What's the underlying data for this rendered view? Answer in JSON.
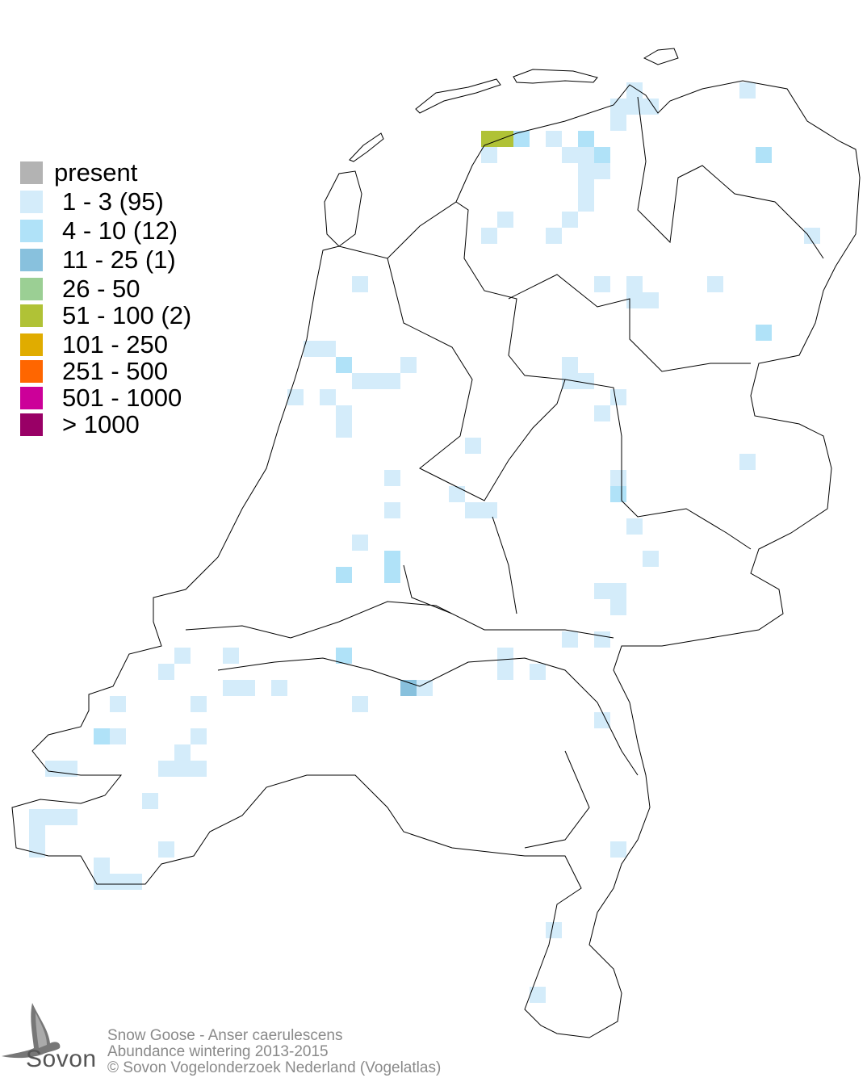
{
  "legend": {
    "items": [
      {
        "label": "present",
        "color": "#b3b3b3"
      },
      {
        "label": "1 - 3 (95)",
        "color": "#d4ecfa"
      },
      {
        "label": "4 - 10 (12)",
        "color": "#b0e2f8"
      },
      {
        "label": "11 - 25 (1)",
        "color": "#88c1dd"
      },
      {
        "label": "26 - 50",
        "color": "#9bcf94"
      },
      {
        "label": "51 - 100 (2)",
        "color": "#b0c236"
      },
      {
        "label": "101 - 250",
        "color": "#e0ac00"
      },
      {
        "label": "251 - 500",
        "color": "#ff6600"
      },
      {
        "label": "501 - 1000",
        "color": "#cc0099"
      },
      {
        "label": "> 1000",
        "color": "#990066"
      }
    ]
  },
  "caption": {
    "species": "Snow Goose - Anser caerulescens",
    "subtitle": "Abundance wintering 2013-2015",
    "copyright": "© Sovon Vogelonderzoek Nederland (Vogelatlas)"
  },
  "logo": {
    "text": "Sovon"
  }
}
